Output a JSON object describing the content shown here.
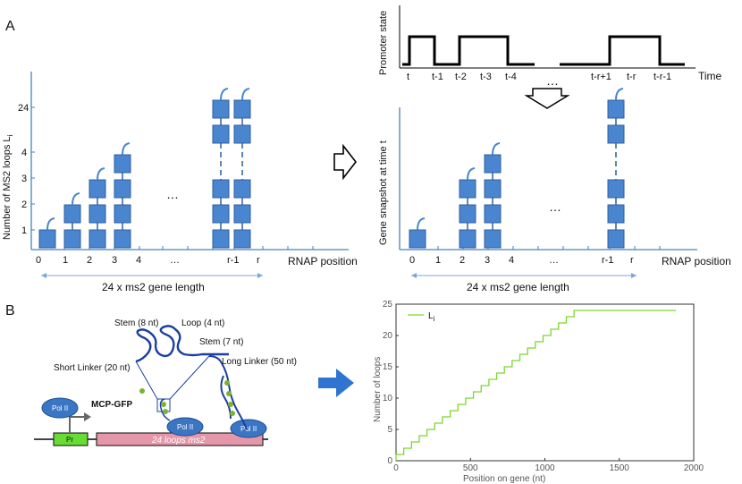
{
  "panelA": {
    "label": "A",
    "left": {
      "ylabel": "Number of MS2 loops L",
      "ylabel_sub": "i",
      "yticks": [
        "1",
        "2",
        "3",
        "4",
        "24"
      ],
      "xticks": [
        "0",
        "1",
        "2",
        "3",
        "4",
        "…",
        "r-1",
        "r"
      ],
      "xlabel": "RNAP position",
      "span_label": "24 x ms2 gene length",
      "dots": "…"
    },
    "arrow_icon": "hollow-right-arrow",
    "promoter": {
      "ylabel": "Promoter state",
      "xlabel": "Time",
      "xticks": [
        "t",
        "t-1",
        "t-2",
        "t-3",
        "t-4",
        "…",
        "t-r+1",
        "t-r",
        "t-r-1"
      ]
    },
    "down_arrow_icon": "hollow-down-arrow",
    "snapshot": {
      "ylabel": "Gene snapshot at time t",
      "xticks": [
        "0",
        "1",
        "2",
        "3",
        "4",
        "…",
        "r-1",
        "r"
      ],
      "xlabel": "RNAP position",
      "span_label": "24 x ms2 gene length",
      "dots": "…"
    }
  },
  "panelB": {
    "label": "B",
    "labels": {
      "stem8": "Stem (8 nt)",
      "loop4": "Loop (4 nt)",
      "stem7": "Stem (7 nt)",
      "short_linker": "Short Linker (20 nt)",
      "long_linker": "Long Linker (50 nt)",
      "mcp": "MCP-GFP",
      "pol": "Pol II",
      "promoter": "Pr",
      "gene": "24 loops ms2"
    },
    "colors": {
      "gene": "#e597a9",
      "promoter": "#66dd33",
      "pol": "#3b76c4",
      "gfp": "#7ab32e"
    },
    "arrow_icon": "blue-right-arrow"
  },
  "chart_data": {
    "type": "line",
    "title": "",
    "xlabel": "Position on gene (nt)",
    "ylabel": "Number of loops",
    "xlim": [
      0,
      2000
    ],
    "ylim": [
      0,
      25
    ],
    "xticks": [
      0,
      500,
      1000,
      1500,
      2000
    ],
    "yticks": [
      0,
      5,
      10,
      15,
      20,
      25
    ],
    "series": [
      {
        "name": "L",
        "name_sub": "i",
        "color": "#7dd62f",
        "step": 52,
        "max": 24,
        "xend": 1880
      }
    ]
  }
}
